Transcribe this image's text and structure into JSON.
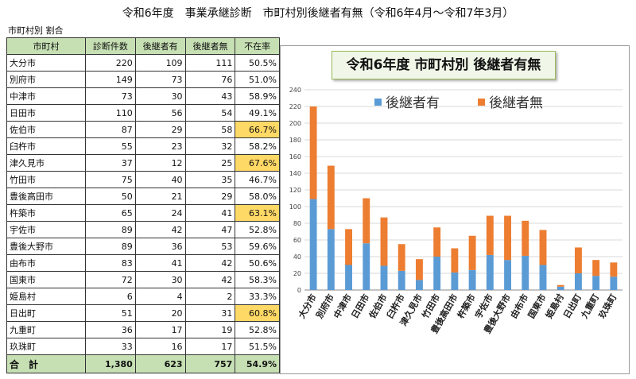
{
  "page_title": "令和6年度　事業承継診断　市町村別後継者有無（令和6年4月～令和7年3月）",
  "table_caption": "市町村別 割合",
  "table": {
    "headers": [
      "市町村",
      "診断件数",
      "後継者有",
      "後継者無",
      "不在率"
    ],
    "rows": [
      {
        "name": "大分市",
        "count": "220",
        "yes": "109",
        "no": "111",
        "rate": "50.5%",
        "highlight": false
      },
      {
        "name": "別府市",
        "count": "149",
        "yes": "73",
        "no": "76",
        "rate": "51.0%",
        "highlight": false
      },
      {
        "name": "中津市",
        "count": "73",
        "yes": "30",
        "no": "43",
        "rate": "58.9%",
        "highlight": false
      },
      {
        "name": "日田市",
        "count": "110",
        "yes": "56",
        "no": "54",
        "rate": "49.1%",
        "highlight": false
      },
      {
        "name": "佐伯市",
        "count": "87",
        "yes": "29",
        "no": "58",
        "rate": "66.7%",
        "highlight": true
      },
      {
        "name": "臼杵市",
        "count": "55",
        "yes": "23",
        "no": "32",
        "rate": "58.2%",
        "highlight": false
      },
      {
        "name": "津久見市",
        "count": "37",
        "yes": "12",
        "no": "25",
        "rate": "67.6%",
        "highlight": true
      },
      {
        "name": "竹田市",
        "count": "75",
        "yes": "40",
        "no": "35",
        "rate": "46.7%",
        "highlight": false
      },
      {
        "name": "豊後高田市",
        "count": "50",
        "yes": "21",
        "no": "29",
        "rate": "58.0%",
        "highlight": false
      },
      {
        "name": "杵築市",
        "count": "65",
        "yes": "24",
        "no": "41",
        "rate": "63.1%",
        "highlight": true
      },
      {
        "name": "宇佐市",
        "count": "89",
        "yes": "42",
        "no": "47",
        "rate": "52.8%",
        "highlight": false
      },
      {
        "name": "豊後大野市",
        "count": "89",
        "yes": "36",
        "no": "53",
        "rate": "59.6%",
        "highlight": false
      },
      {
        "name": "由布市",
        "count": "83",
        "yes": "41",
        "no": "42",
        "rate": "50.6%",
        "highlight": false
      },
      {
        "name": "国東市",
        "count": "72",
        "yes": "30",
        "no": "42",
        "rate": "58.3%",
        "highlight": false
      },
      {
        "name": "姫島村",
        "count": "6",
        "yes": "4",
        "no": "2",
        "rate": "33.3%",
        "highlight": false
      },
      {
        "name": "日出町",
        "count": "51",
        "yes": "20",
        "no": "31",
        "rate": "60.8%",
        "highlight": true
      },
      {
        "name": "九重町",
        "count": "36",
        "yes": "17",
        "no": "19",
        "rate": "52.8%",
        "highlight": false
      },
      {
        "name": "玖珠町",
        "count": "33",
        "yes": "16",
        "no": "17",
        "rate": "51.5%",
        "highlight": false
      }
    ],
    "total": {
      "label": "合　計",
      "count": "1,380",
      "yes": "623",
      "no": "757",
      "rate": "54.9%"
    }
  },
  "colors": {
    "yes": "#5b9bd5",
    "no": "#ed7d31",
    "header_bg": "#c6e0b4",
    "highlight": "#ffd966"
  },
  "chart_data": {
    "type": "bar",
    "stacked": true,
    "title": "令和6年度 市町村別 後継者有無",
    "categories": [
      "大分市",
      "別府市",
      "中津市",
      "日田市",
      "佐伯市",
      "臼杵市",
      "津久見市",
      "竹田市",
      "豊後高田市",
      "杵築市",
      "宇佐市",
      "豊後大野市",
      "由布市",
      "国東市",
      "姫島村",
      "日出町",
      "九重町",
      "玖珠町"
    ],
    "series": [
      {
        "name": "後継者有",
        "color": "#5b9bd5",
        "values": [
          109,
          73,
          30,
          56,
          29,
          23,
          12,
          40,
          21,
          24,
          42,
          36,
          41,
          30,
          4,
          20,
          17,
          16
        ]
      },
      {
        "name": "後継者無",
        "color": "#ed7d31",
        "values": [
          111,
          76,
          43,
          54,
          58,
          32,
          25,
          35,
          29,
          41,
          47,
          53,
          42,
          42,
          2,
          31,
          19,
          17
        ]
      }
    ],
    "ylim": [
      0,
      240
    ],
    "yticks": [
      0,
      20,
      40,
      60,
      80,
      100,
      120,
      140,
      160,
      180,
      200,
      220,
      240
    ],
    "grid": true,
    "legend": "top"
  }
}
